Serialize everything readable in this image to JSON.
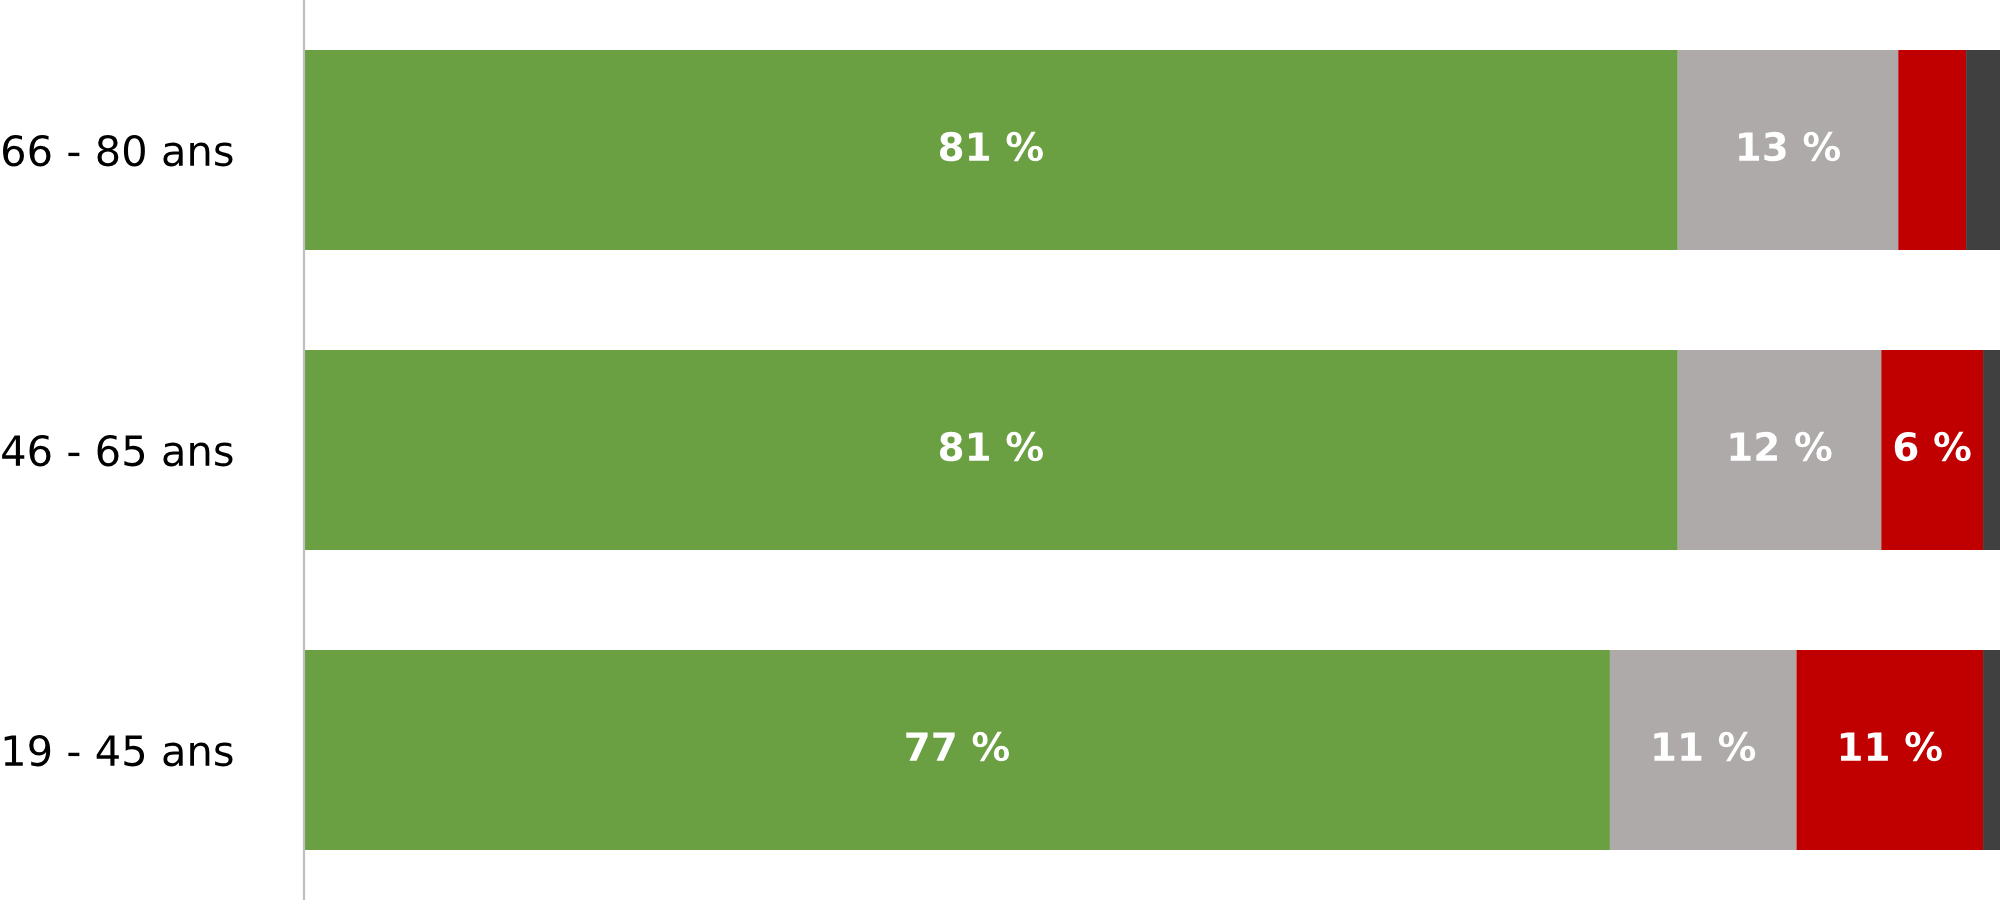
{
  "chart_data": {
    "type": "bar",
    "orientation": "horizontal",
    "stacked": true,
    "tick_labels": "y",
    "grid": false,
    "legend": false,
    "categories": [
      "66 - 80 ans",
      "46 - 65 ans",
      "19 - 45 ans"
    ],
    "xlim": [
      0,
      100
    ],
    "series": [
      {
        "color": "#6a9f42",
        "values": [
          81,
          81,
          77
        ],
        "value_labels": [
          "81 %",
          "81 %",
          "77 %"
        ]
      },
      {
        "color": "#aeaaaa",
        "values": [
          13,
          12,
          11
        ],
        "value_labels": [
          "13 %",
          "12 %",
          "11 %"
        ]
      },
      {
        "color": "#c00000",
        "values": [
          4,
          6,
          11
        ],
        "value_labels": [
          null,
          "6 %",
          "11 %"
        ]
      },
      {
        "color": "#404040",
        "values": [
          2,
          1,
          1
        ],
        "value_labels": [
          null,
          null,
          null
        ]
      }
    ]
  }
}
